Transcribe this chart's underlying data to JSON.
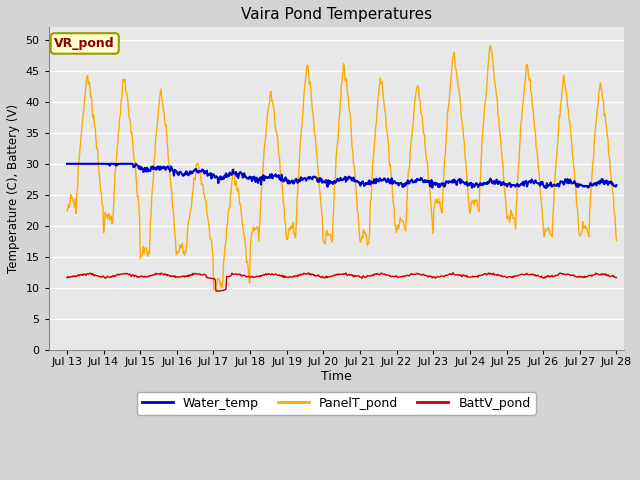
{
  "title": "Vaira Pond Temperatures",
  "xlabel": "Time",
  "ylabel": "Temperature (C), Battery (V)",
  "xlim_days": [
    12.5,
    28.2
  ],
  "ylim": [
    0,
    52
  ],
  "yticks": [
    0,
    5,
    10,
    15,
    20,
    25,
    30,
    35,
    40,
    45,
    50
  ],
  "xtick_labels": [
    "Jul 13",
    "Jul 14",
    "Jul 15",
    "Jul 16",
    "Jul 17",
    "Jul 18",
    "Jul 19",
    "Jul 20",
    "Jul 21",
    "Jul 22",
    "Jul 23",
    "Jul 24",
    "Jul 25",
    "Jul 26",
    "Jul 27",
    "Jul 28"
  ],
  "xtick_positions": [
    13,
    14,
    15,
    16,
    17,
    18,
    19,
    20,
    21,
    22,
    23,
    24,
    25,
    26,
    27,
    28
  ],
  "water_color": "#0000cc",
  "panel_color": "#ffaa00",
  "batt_color": "#cc0000",
  "legend_labels": [
    "Water_temp",
    "PanelT_pond",
    "BattV_pond"
  ],
  "annotation_text": "VR_pond",
  "plot_bg_color": "#e8e8e8",
  "fig_bg_color": "#d4d4d4",
  "grid_color": "white"
}
